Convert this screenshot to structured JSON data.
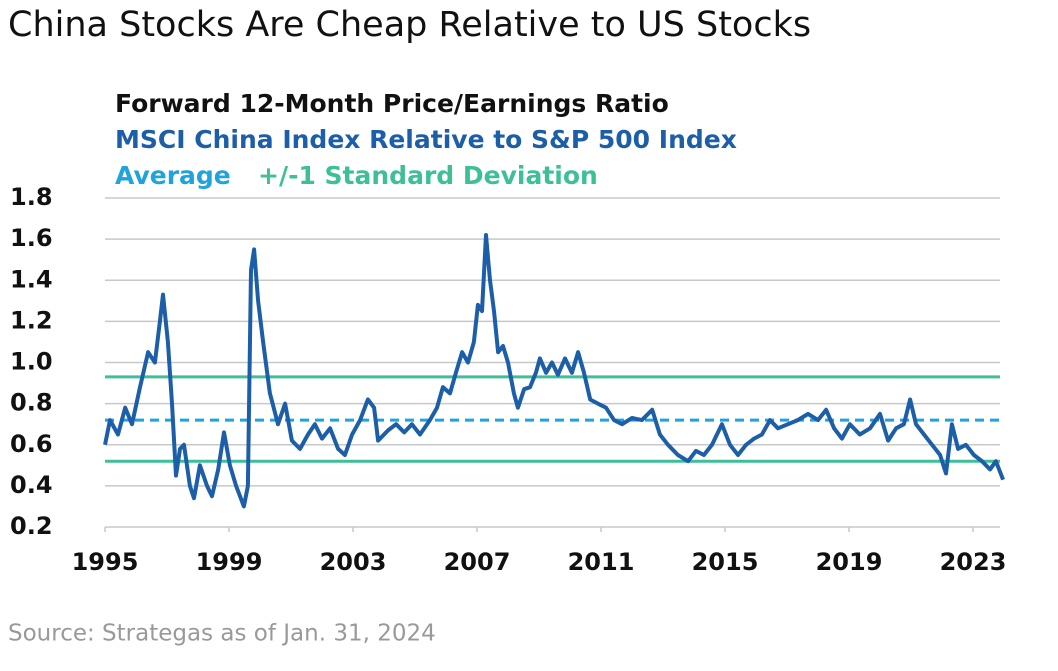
{
  "chart_data": {
    "type": "line",
    "title": "China Stocks Are Cheap Relative to US Stocks",
    "subtitle": "Forward 12-Month Price/Earnings Ratio",
    "source": "Source: Strategas as of Jan. 31, 2024",
    "average": {
      "label": "Average",
      "value": 0.72,
      "color": "#1fa3dc"
    },
    "std_dev": {
      "label": "+/-1 Standard Deviation",
      "values": [
        0.52,
        0.93
      ],
      "color": "#3dbf98"
    },
    "xlim": [
      1995,
      2024
    ],
    "xticks": [
      1995,
      1999,
      2003,
      2007,
      2011,
      2015,
      2019,
      2023
    ],
    "ylim": [
      0.2,
      1.8
    ],
    "yticks": [
      0.2,
      0.4,
      0.6,
      0.8,
      {
        "value": 1,
        "label": "1.0"
      },
      1.2,
      1.4,
      1.6,
      1.8
    ],
    "grid": true,
    "x": [
      1995.0,
      1995.16,
      1995.42,
      1995.65,
      1995.87,
      1996.13,
      1996.39,
      1996.61,
      1996.77,
      1996.87,
      1997.03,
      1997.16,
      1997.29,
      1997.42,
      1997.55,
      1997.74,
      1997.87,
      1998.06,
      1998.29,
      1998.45,
      1998.65,
      1998.84,
      1999.03,
      1999.23,
      1999.48,
      1999.61,
      1999.71,
      1999.81,
      1999.94,
      2000.1,
      2000.32,
      2000.58,
      2000.81,
      2001.03,
      2001.29,
      2001.55,
      2001.77,
      2002.0,
      2002.26,
      2002.52,
      2002.74,
      2002.97,
      2003.23,
      2003.48,
      2003.68,
      2003.81,
      2004.13,
      2004.39,
      2004.65,
      2004.9,
      2005.16,
      2005.48,
      2005.71,
      2005.9,
      2006.13,
      2006.32,
      2006.52,
      2006.71,
      2006.9,
      2007.03,
      2007.16,
      2007.29,
      2007.42,
      2007.55,
      2007.68,
      2007.84,
      2008.0,
      2008.19,
      2008.32,
      2008.52,
      2008.71,
      2008.9,
      2009.03,
      2009.23,
      2009.42,
      2009.61,
      2009.84,
      2010.06,
      2010.26,
      2010.45,
      2010.65,
      2010.9,
      2011.16,
      2011.42,
      2011.68,
      2012.0,
      2012.32,
      2012.65,
      2012.9,
      2013.16,
      2013.48,
      2013.81,
      2014.06,
      2014.32,
      2014.58,
      2014.9,
      2015.16,
      2015.42,
      2015.68,
      2015.94,
      2016.19,
      2016.45,
      2016.71,
      2017.03,
      2017.35,
      2017.68,
      2018.0,
      2018.26,
      2018.52,
      2018.77,
      2019.03,
      2019.35,
      2019.68,
      2020.0,
      2020.26,
      2020.52,
      2020.77,
      2020.97,
      2021.16,
      2021.42,
      2021.68,
      2021.94,
      2022.13,
      2022.32,
      2022.52,
      2022.77,
      2023.03,
      2023.29,
      2023.55,
      2023.74,
      2023.97
    ],
    "series": [
      {
        "name": "MSCI China Index Relative to S&P 500 Index",
        "color": "#1c5ea8",
        "values": [
          0.6,
          0.72,
          0.65,
          0.78,
          0.7,
          0.88,
          1.05,
          1.0,
          1.2,
          1.33,
          1.1,
          0.8,
          0.45,
          0.58,
          0.6,
          0.4,
          0.34,
          0.5,
          0.4,
          0.35,
          0.48,
          0.66,
          0.5,
          0.4,
          0.3,
          0.4,
          1.45,
          1.55,
          1.3,
          1.1,
          0.85,
          0.7,
          0.8,
          0.62,
          0.58,
          0.65,
          0.7,
          0.63,
          0.68,
          0.58,
          0.55,
          0.65,
          0.72,
          0.82,
          0.78,
          0.62,
          0.67,
          0.7,
          0.66,
          0.7,
          0.65,
          0.72,
          0.78,
          0.88,
          0.85,
          0.95,
          1.05,
          1.0,
          1.1,
          1.28,
          1.25,
          1.62,
          1.4,
          1.25,
          1.05,
          1.08,
          1.0,
          0.85,
          0.78,
          0.87,
          0.88,
          0.95,
          1.02,
          0.95,
          1.0,
          0.94,
          1.02,
          0.95,
          1.05,
          0.95,
          0.82,
          0.8,
          0.78,
          0.72,
          0.7,
          0.73,
          0.72,
          0.77,
          0.65,
          0.6,
          0.55,
          0.52,
          0.57,
          0.55,
          0.6,
          0.7,
          0.6,
          0.55,
          0.6,
          0.63,
          0.65,
          0.72,
          0.68,
          0.7,
          0.72,
          0.75,
          0.72,
          0.77,
          0.68,
          0.63,
          0.7,
          0.65,
          0.68,
          0.75,
          0.62,
          0.68,
          0.7,
          0.82,
          0.7,
          0.65,
          0.6,
          0.55,
          0.46,
          0.7,
          0.58,
          0.6,
          0.55,
          0.52,
          0.48,
          0.52,
          0.43
        ]
      }
    ]
  }
}
